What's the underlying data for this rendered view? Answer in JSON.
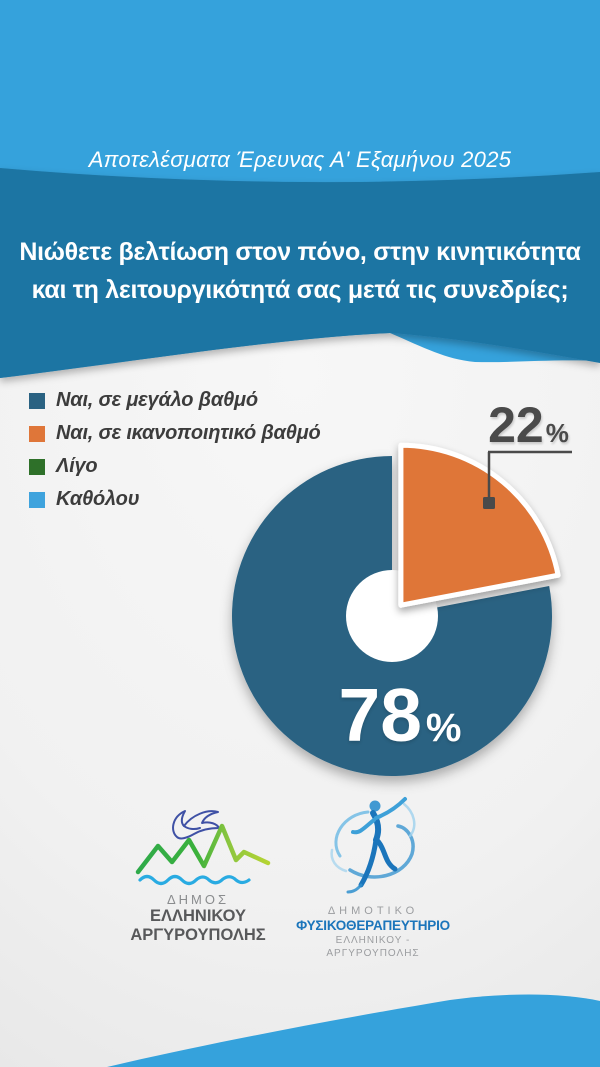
{
  "header": {
    "subtitle": "Αποτελέσματα Έρευνας Α' Εξαμήνου 2025"
  },
  "question": {
    "lines": [
      "Νιώθετε βελτίωση στον πόνο, στην κινητικότητα",
      "και τη λειτουργικότητά σας μετά τις συνεδρίες;"
    ]
  },
  "chart_data": {
    "type": "pie",
    "title": "Νιώθετε βελτίωση στον πόνο, στην κινητικότητα και τη λειτουργικότητά σας μετά τις συνεδρίες;",
    "categories": [
      "Ναι, σε μεγάλο βαθμό",
      "Ναι, σε ικανοποιητικό βαθμό",
      "Λίγο",
      "Καθόλου"
    ],
    "values": [
      78,
      22,
      0,
      0
    ],
    "unit": "%",
    "colors": [
      "#2a6282",
      "#df7639",
      "#2e7029",
      "#3fa3dd"
    ],
    "donut": true,
    "start_angle_deg": 79.2,
    "exploded_index": 1,
    "legend_position": "top-left",
    "data_labels": [
      "78%",
      "22%"
    ]
  },
  "footer": {
    "left_logo": {
      "name": "ΔΗΜΟΣ",
      "line2": "ΕΛΛΗΝΙΚΟΥ",
      "line3": "ΑΡΓΥΡΟΥΠΟΛΗΣ"
    },
    "right_logo": {
      "line1": "ΔΗΜΟΤΙΚΟ",
      "line2": "ΦΥΣΙΚΟΘΕΡΑΠΕΥΤΗΡΙΟ",
      "line3": "ΕΛΛΗΝΙΚΟΥ - ΑΡΓΥΡΟΥΠΟΛΗΣ"
    }
  },
  "colors": {
    "header_blue": "#35a2dc",
    "band_blue": "#1d74a3",
    "background_gray": "#f0f0f0",
    "callout_gray": "#4a4a4a"
  }
}
